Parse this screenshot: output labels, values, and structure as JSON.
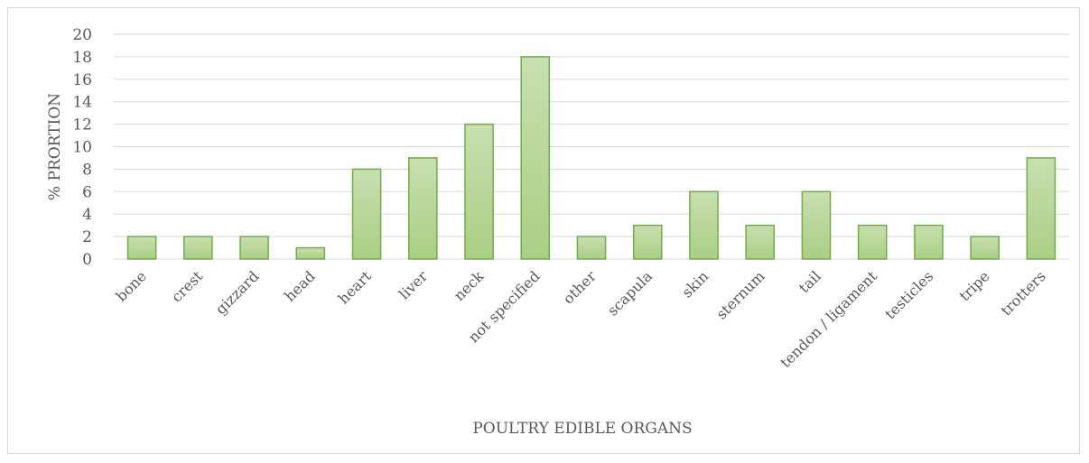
{
  "chart_data": {
    "type": "bar",
    "title": "",
    "xlabel": "POULTRY EDIBLE ORGANS",
    "ylabel": "% PRORTION",
    "categories": [
      "bone",
      "crest",
      "gizzard",
      "head",
      "heart",
      "liver",
      "neck",
      "not specified",
      "other",
      "scapula",
      "skin",
      "sternum",
      "tail",
      "tendon / ligament",
      "testicles",
      "tripe",
      "trotters"
    ],
    "values": [
      2,
      2,
      2,
      1,
      8,
      9,
      12,
      18,
      2,
      3,
      6,
      3,
      6,
      3,
      3,
      2,
      9
    ],
    "ylim": [
      0,
      20
    ],
    "yticks": [
      0,
      2,
      4,
      6,
      8,
      10,
      12,
      14,
      16,
      18,
      20
    ],
    "grid": true,
    "legend": "none",
    "colors": {
      "bar_fill_top": "#c9dfb0",
      "bar_fill_bottom": "#a9cf84",
      "bar_stroke": "#70ad47",
      "gridline": "#d9d9d9",
      "text": "#595959"
    }
  }
}
